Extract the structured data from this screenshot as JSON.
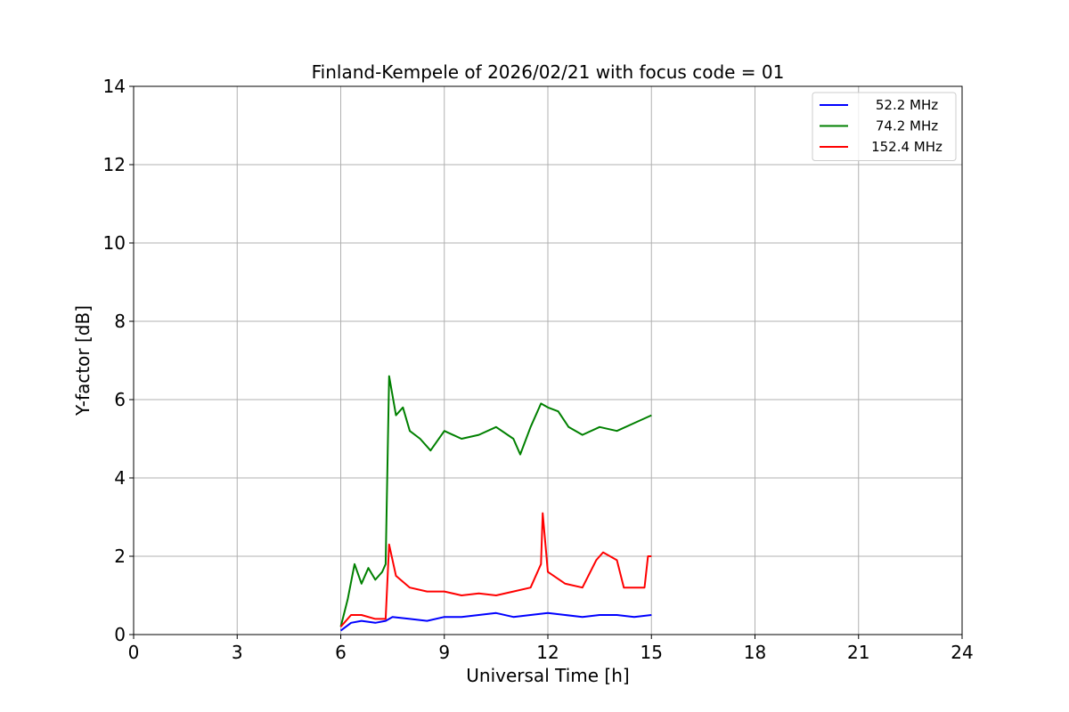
{
  "chart_data": {
    "type": "line",
    "title": "Finland-Kempele of 2026/02/21 with focus code = 01",
    "xlabel": "Universal Time [h]",
    "ylabel": "Y-factor [dB]",
    "xlim": [
      0,
      24
    ],
    "ylim": [
      0,
      14
    ],
    "xticks": [
      0,
      3,
      6,
      9,
      12,
      15,
      18,
      21,
      24
    ],
    "yticks": [
      0,
      2,
      4,
      6,
      8,
      10,
      12,
      14
    ],
    "grid": true,
    "legend_position": "top-right",
    "series": [
      {
        "name": "52.2 MHz",
        "color": "#0000ff",
        "x": [
          6.0,
          6.3,
          6.6,
          7.0,
          7.3,
          7.5,
          8.0,
          8.5,
          9.0,
          9.5,
          10.0,
          10.5,
          11.0,
          11.5,
          12.0,
          12.5,
          13.0,
          13.5,
          14.0,
          14.5,
          15.0
        ],
        "y": [
          0.1,
          0.3,
          0.35,
          0.3,
          0.35,
          0.45,
          0.4,
          0.35,
          0.45,
          0.45,
          0.5,
          0.55,
          0.45,
          0.5,
          0.55,
          0.5,
          0.45,
          0.5,
          0.5,
          0.45,
          0.5
        ]
      },
      {
        "name": "74.2 MHz",
        "color": "#008000",
        "x": [
          6.0,
          6.2,
          6.4,
          6.6,
          6.8,
          7.0,
          7.2,
          7.3,
          7.4,
          7.6,
          7.8,
          8.0,
          8.3,
          8.6,
          9.0,
          9.5,
          10.0,
          10.5,
          11.0,
          11.2,
          11.5,
          11.8,
          12.0,
          12.3,
          12.6,
          13.0,
          13.5,
          14.0,
          14.5,
          15.0
        ],
        "y": [
          0.2,
          0.9,
          1.8,
          1.3,
          1.7,
          1.4,
          1.6,
          1.8,
          6.6,
          5.6,
          5.8,
          5.2,
          5.0,
          4.7,
          5.2,
          5.0,
          5.1,
          5.3,
          5.0,
          4.6,
          5.3,
          5.9,
          5.8,
          5.7,
          5.3,
          5.1,
          5.3,
          5.2,
          5.4,
          5.6
        ]
      },
      {
        "name": "152.4 MHz",
        "color": "#ff0000",
        "x": [
          6.0,
          6.3,
          6.6,
          7.0,
          7.3,
          7.4,
          7.6,
          8.0,
          8.5,
          9.0,
          9.5,
          10.0,
          10.5,
          11.0,
          11.5,
          11.8,
          11.85,
          12.0,
          12.5,
          13.0,
          13.4,
          13.6,
          14.0,
          14.2,
          14.5,
          14.8,
          14.9,
          15.0
        ],
        "y": [
          0.2,
          0.5,
          0.5,
          0.4,
          0.4,
          2.3,
          1.5,
          1.2,
          1.1,
          1.1,
          1.0,
          1.05,
          1.0,
          1.1,
          1.2,
          1.8,
          3.1,
          1.6,
          1.3,
          1.2,
          1.9,
          2.1,
          1.9,
          1.2,
          1.2,
          1.2,
          2.0,
          2.0
        ]
      }
    ]
  }
}
